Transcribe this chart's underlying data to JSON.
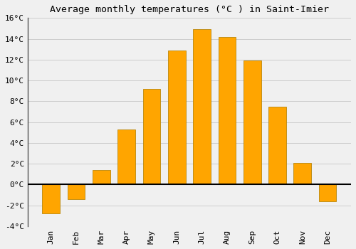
{
  "title": "Average monthly temperatures (°C ) in Saint-Imier",
  "months": [
    "Jan",
    "Feb",
    "Mar",
    "Apr",
    "May",
    "Jun",
    "Jul",
    "Aug",
    "Sep",
    "Oct",
    "Nov",
    "Dec"
  ],
  "values": [
    -2.8,
    -1.4,
    1.4,
    5.3,
    9.2,
    12.9,
    14.9,
    14.2,
    11.9,
    7.5,
    2.1,
    -1.6
  ],
  "bar_color": "#FFA500",
  "bar_edge_color": "#B8860B",
  "background_color": "#F0F0F0",
  "grid_color": "#CCCCCC",
  "ylim": [
    -4,
    16
  ],
  "yticks": [
    -4,
    -2,
    0,
    2,
    4,
    6,
    8,
    10,
    12,
    14,
    16
  ],
  "ytick_labels": [
    "-4°C",
    "-2°C",
    "0°C",
    "2°C",
    "4°C",
    "6°C",
    "8°C",
    "10°C",
    "12°C",
    "14°C",
    "16°C"
  ],
  "title_fontsize": 9.5,
  "tick_fontsize": 8,
  "zero_line_color": "#000000",
  "spine_color": "#555555",
  "bar_width": 0.7
}
